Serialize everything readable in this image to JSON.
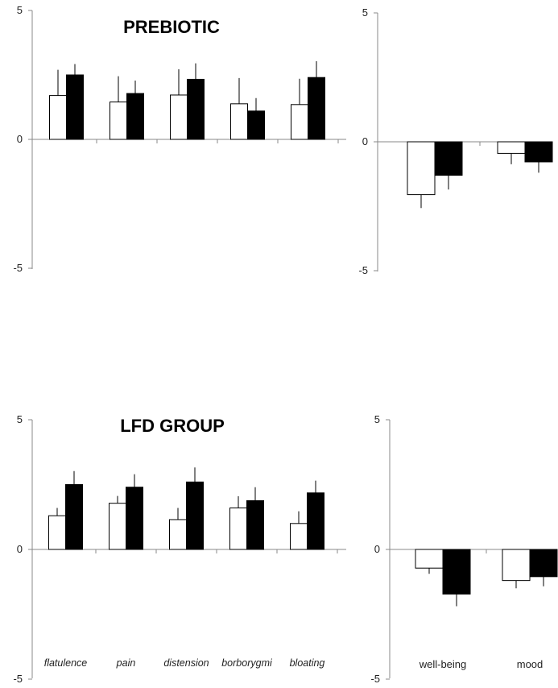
{
  "chart_data": [
    {
      "type": "bar",
      "panel": "top-left",
      "title": "PREBIOTIC",
      "categories": [
        "flatulence",
        "pain",
        "distension",
        "borborygmi",
        "bloating"
      ],
      "show_category_labels": false,
      "ylim": [
        -5,
        5
      ],
      "yticks": [
        "5",
        "0",
        "-5"
      ],
      "series": [
        {
          "fill": "#ffffff",
          "values": [
            1.7,
            1.45,
            1.72,
            1.38,
            1.35
          ],
          "errors": [
            1.0,
            1.0,
            1.0,
            1.0,
            1.0
          ]
        },
        {
          "fill": "#000000",
          "values": [
            2.5,
            1.78,
            2.33,
            1.1,
            2.4
          ],
          "errors": [
            0.42,
            0.5,
            0.62,
            0.5,
            0.63
          ]
        }
      ]
    },
    {
      "type": "bar",
      "panel": "top-right",
      "title": "",
      "categories": [
        "well-being",
        "mood"
      ],
      "show_category_labels": false,
      "ylim": [
        -5,
        5
      ],
      "yticks": [
        "5",
        "0",
        "-5"
      ],
      "series": [
        {
          "fill": "#ffffff",
          "values": [
            -2.05,
            -0.45
          ],
          "errors": [
            0.52,
            0.42
          ]
        },
        {
          "fill": "#000000",
          "values": [
            -1.3,
            -0.78
          ],
          "errors": [
            0.55,
            0.42
          ]
        }
      ]
    },
    {
      "type": "bar",
      "panel": "bottom-left",
      "title": "LFD GROUP",
      "categories": [
        "flatulence",
        "pain",
        "distension",
        "borborygmi",
        "bloating"
      ],
      "show_category_labels": true,
      "ylim": [
        -5,
        5
      ],
      "yticks": [
        "5",
        "0",
        "-5"
      ],
      "series": [
        {
          "fill": "#ffffff",
          "values": [
            1.3,
            1.78,
            1.15,
            1.6,
            1.0
          ],
          "errors": [
            0.3,
            0.28,
            0.45,
            0.45,
            0.47
          ]
        },
        {
          "fill": "#000000",
          "values": [
            2.5,
            2.4,
            2.6,
            1.88,
            2.18
          ],
          "errors": [
            0.52,
            0.5,
            0.56,
            0.52,
            0.47
          ]
        }
      ]
    },
    {
      "type": "bar",
      "panel": "bottom-right",
      "title": "",
      "categories": [
        "well-being",
        "mood"
      ],
      "show_category_labels": true,
      "ylim": [
        -5,
        5
      ],
      "yticks": [
        "5",
        "0",
        "-5"
      ],
      "series": [
        {
          "fill": "#ffffff",
          "values": [
            -0.72,
            -1.2
          ],
          "errors": [
            0.22,
            0.3
          ]
        },
        {
          "fill": "#000000",
          "values": [
            -1.72,
            -1.05
          ],
          "errors": [
            0.47,
            0.37
          ]
        }
      ]
    }
  ]
}
